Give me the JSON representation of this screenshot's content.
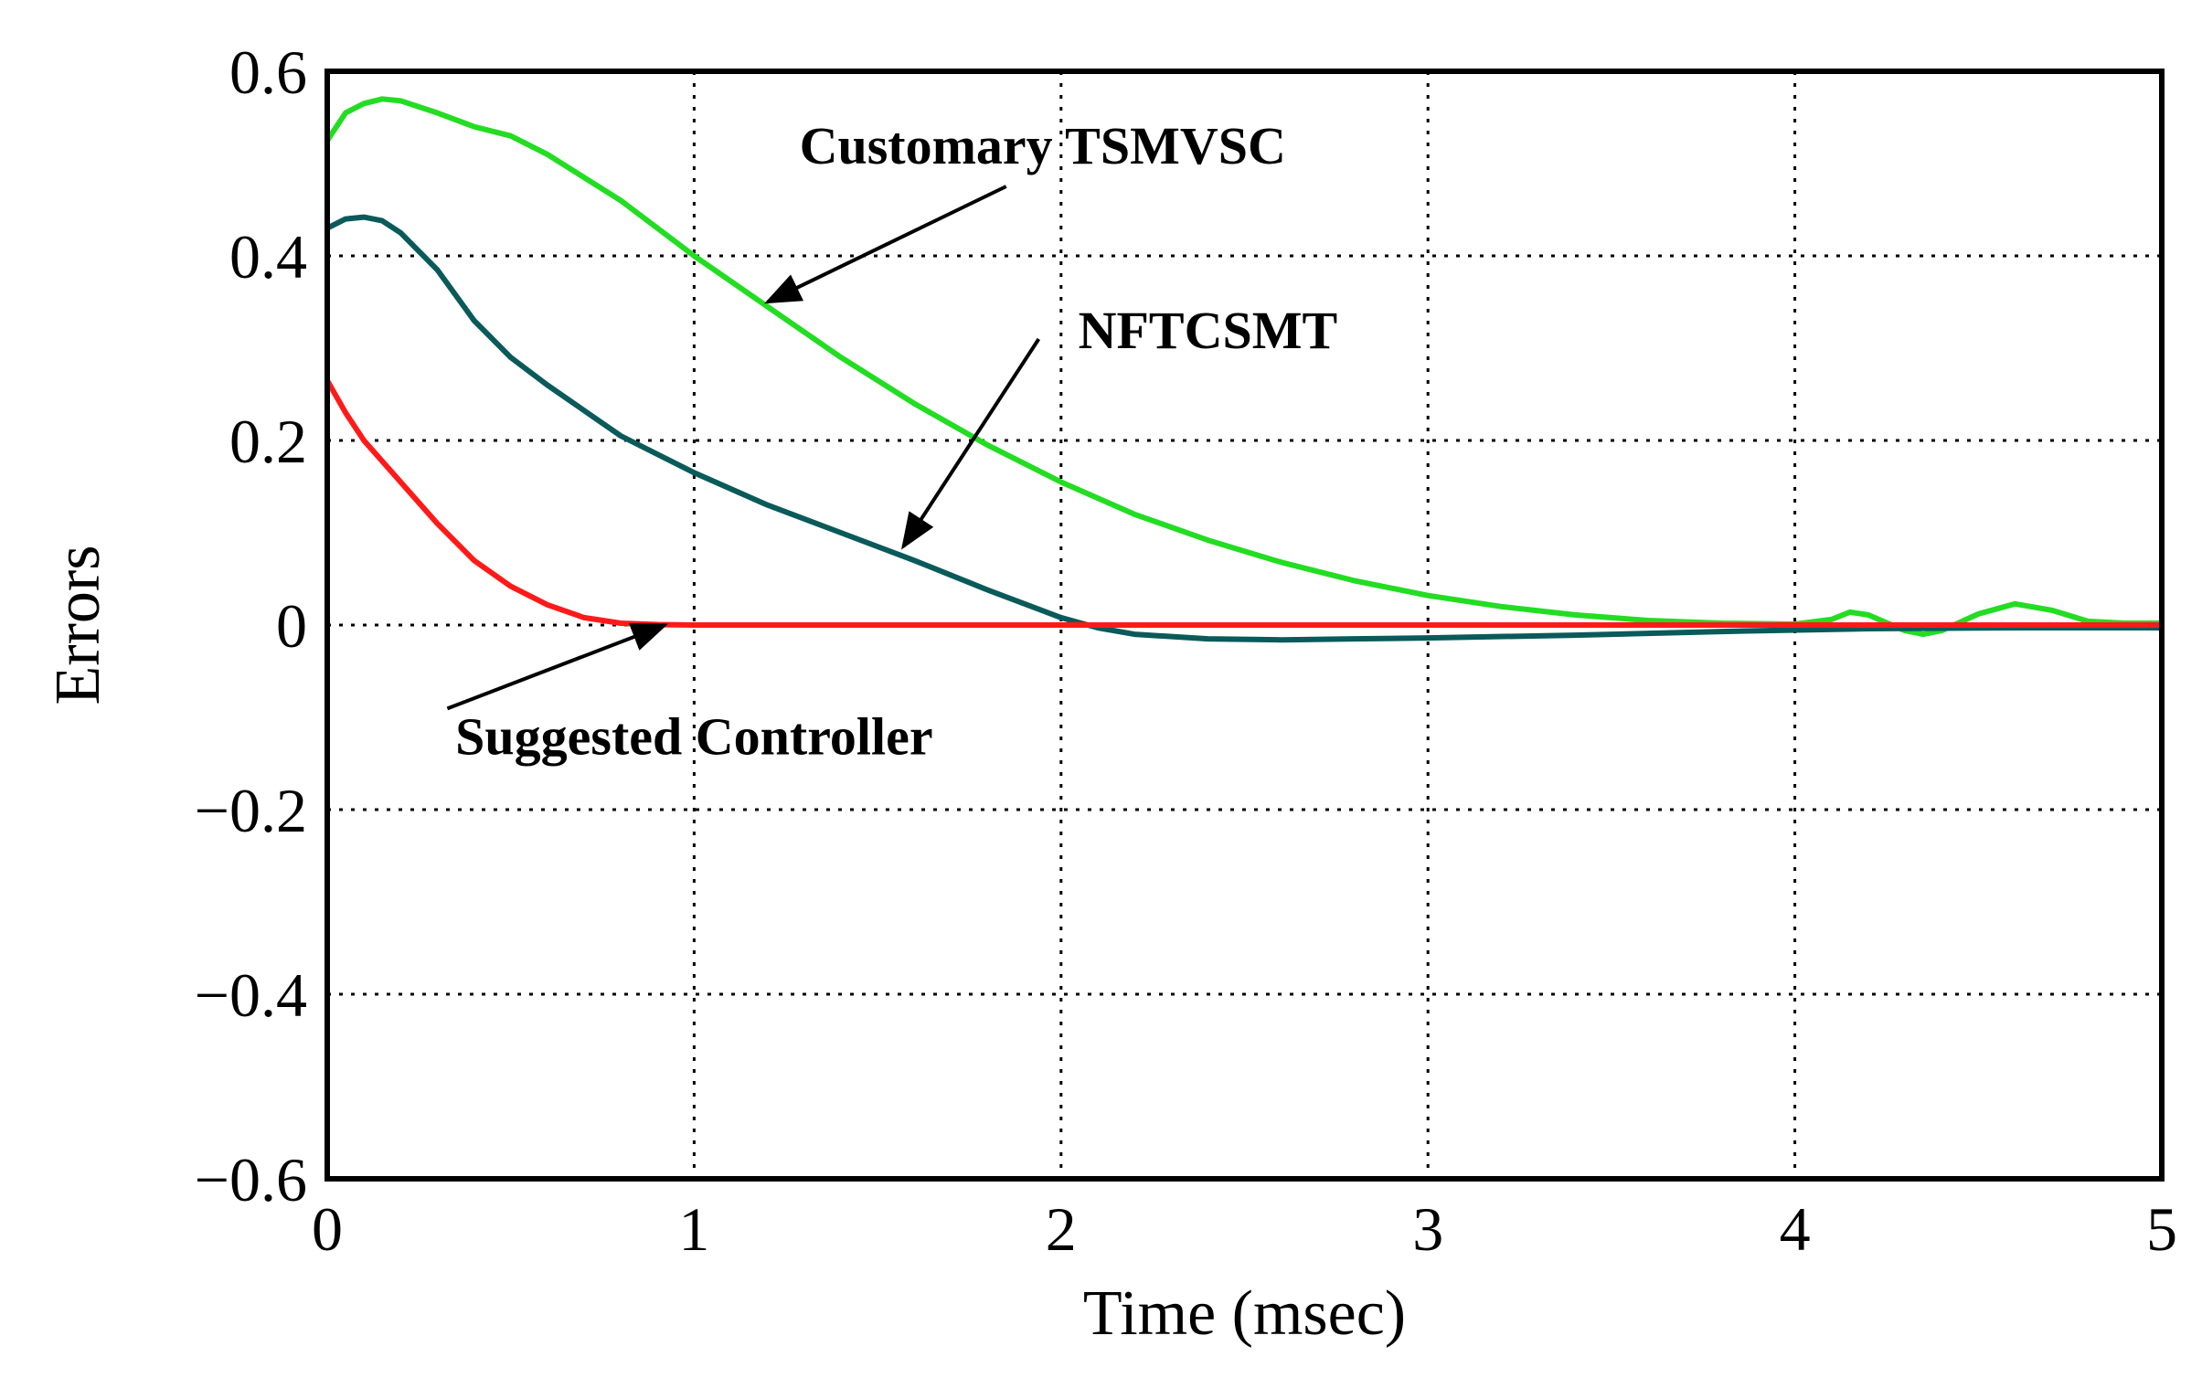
{
  "chart_data": {
    "type": "line",
    "title": "",
    "xlabel": "Time (msec)",
    "ylabel": "Errors",
    "xlim": [
      0,
      5
    ],
    "ylim": [
      -0.6,
      0.6
    ],
    "xticks": [
      0,
      1,
      2,
      3,
      4,
      5
    ],
    "xtick_labels": [
      "0",
      "1",
      "2",
      "3",
      "4",
      "5"
    ],
    "yticks": [
      -0.6,
      -0.4,
      -0.2,
      0,
      0.2,
      0.4,
      0.6
    ],
    "ytick_labels": [
      "−0.6",
      "−0.4",
      "−0.2",
      "0",
      "0.2",
      "0.4",
      "0.6"
    ],
    "grid": true,
    "series": [
      {
        "name": "Customary TSMVSC",
        "color": "#22dd22",
        "x": [
          0,
          0.05,
          0.1,
          0.15,
          0.2,
          0.3,
          0.4,
          0.5,
          0.6,
          0.8,
          1.0,
          1.2,
          1.4,
          1.6,
          1.8,
          2.0,
          2.2,
          2.4,
          2.6,
          2.8,
          3.0,
          3.2,
          3.4,
          3.6,
          3.8,
          4.0,
          4.1,
          4.15,
          4.2,
          4.3,
          4.35,
          4.4,
          4.5,
          4.6,
          4.7,
          4.8,
          4.9,
          5.0
        ],
        "y": [
          0.525,
          0.555,
          0.565,
          0.57,
          0.568,
          0.555,
          0.54,
          0.53,
          0.51,
          0.46,
          0.4,
          0.345,
          0.29,
          0.24,
          0.195,
          0.155,
          0.12,
          0.092,
          0.068,
          0.048,
          0.032,
          0.02,
          0.011,
          0.005,
          0.002,
          0.001,
          0.006,
          0.014,
          0.011,
          -0.006,
          -0.01,
          -0.006,
          0.012,
          0.023,
          0.016,
          0.004,
          0.002,
          0.002
        ]
      },
      {
        "name": "NFTCSMT",
        "color": "#0a5a5a",
        "x": [
          0,
          0.05,
          0.1,
          0.15,
          0.2,
          0.3,
          0.4,
          0.5,
          0.6,
          0.8,
          1.0,
          1.2,
          1.4,
          1.6,
          1.8,
          2.0,
          2.1,
          2.2,
          2.4,
          2.6,
          2.8,
          3.0,
          3.4,
          3.8,
          4.2,
          4.6,
          5.0
        ],
        "y": [
          0.43,
          0.44,
          0.442,
          0.438,
          0.425,
          0.385,
          0.33,
          0.29,
          0.26,
          0.205,
          0.165,
          0.13,
          0.1,
          0.07,
          0.038,
          0.008,
          -0.003,
          -0.01,
          -0.015,
          -0.016,
          -0.015,
          -0.014,
          -0.011,
          -0.007,
          -0.004,
          -0.003,
          -0.003
        ]
      },
      {
        "name": "Suggested Controller",
        "color": "#ff1a1a",
        "x": [
          0,
          0.05,
          0.1,
          0.2,
          0.3,
          0.4,
          0.5,
          0.6,
          0.7,
          0.8,
          0.9,
          1.0,
          1.5,
          2.0,
          2.5,
          3.0,
          3.5,
          4.0,
          4.5,
          5.0
        ],
        "y": [
          0.265,
          0.23,
          0.2,
          0.155,
          0.11,
          0.07,
          0.042,
          0.022,
          0.008,
          0.002,
          0.0005,
          0,
          0,
          0,
          0,
          0,
          0,
          0,
          0,
          0
        ]
      }
    ],
    "annotations": [
      {
        "text": "Customary TSMVSC",
        "series": "Customary TSMVSC",
        "arrow_to": [
          1.2,
          0.35
        ],
        "text_at": [
          1.95,
          0.5
        ]
      },
      {
        "text": "NFTCSMT",
        "series": "NFTCSMT",
        "arrow_to": [
          1.57,
          0.085
        ],
        "text_at": [
          2.4,
          0.3
        ]
      },
      {
        "text": "Suggested Controller",
        "series": "Suggested Controller",
        "arrow_to": [
          0.92,
          0.0
        ],
        "text_at": [
          1.0,
          -0.14
        ]
      }
    ]
  }
}
